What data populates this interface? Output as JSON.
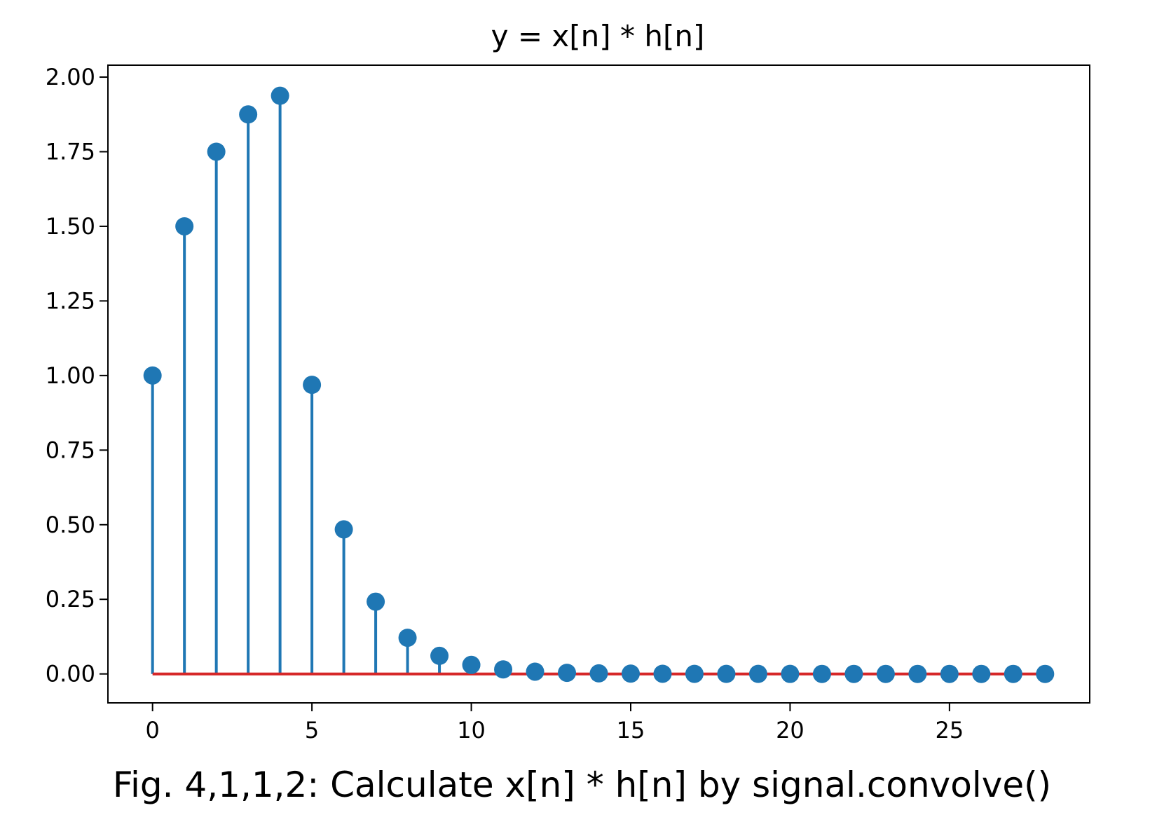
{
  "caption": "Fig. 4,1,1,2: Calculate x[n] * h[n] by signal.convolve()",
  "chart_data": {
    "type": "stem",
    "title": "y = x[n] * h[n]",
    "xlabel": "",
    "ylabel": "",
    "xlim": [
      -1.4,
      29.4
    ],
    "ylim": [
      -0.097,
      2.04
    ],
    "x_ticks": [
      0,
      5,
      10,
      15,
      20,
      25
    ],
    "x_tick_labels": [
      "0",
      "5",
      "10",
      "15",
      "20",
      "25"
    ],
    "y_ticks": [
      0,
      0.25,
      0.5,
      0.75,
      1.0,
      1.25,
      1.5,
      1.75,
      2.0
    ],
    "y_tick_labels": [
      "0.00",
      "0.25",
      "0.50",
      "0.75",
      "1.00",
      "1.25",
      "1.50",
      "1.75",
      "2.00"
    ],
    "grid": false,
    "legend": "none",
    "x": [
      0,
      1,
      2,
      3,
      4,
      5,
      6,
      7,
      8,
      9,
      10,
      11,
      12,
      13,
      14,
      15,
      16,
      17,
      18,
      19,
      20,
      21,
      22,
      23,
      24,
      25,
      26,
      27,
      28
    ],
    "values": [
      1.0,
      1.5,
      1.75,
      1.875,
      1.9375,
      0.96875,
      0.484375,
      0.2421875,
      0.12109375,
      0.060546875,
      0.0302734375,
      0.01513671875,
      0.007568359375,
      0.0037841796875,
      0.00189208984375,
      0.000946044921875,
      0.0004730224609375,
      0.00023651123046875,
      0.000118255615234375,
      5.9127807617e-05,
      2.9563903809e-05,
      1.4781951904e-05,
      7.390975952e-06,
      3.695487976e-06,
      1.847743988e-06,
      9.23871994e-07,
      4.61935997e-07,
      2.30967999e-07,
      1.15484e-07
    ],
    "colors": {
      "stem": "#1f77b4",
      "marker": "#1f77b4",
      "baseline": "#d62728",
      "axes": "#000000"
    }
  }
}
